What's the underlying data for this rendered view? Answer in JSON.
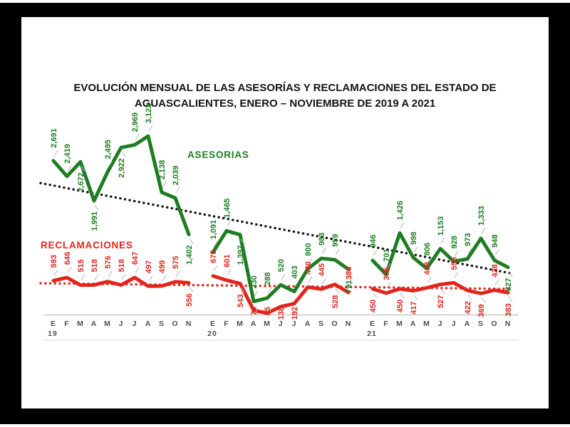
{
  "chart_data": {
    "type": "line",
    "title": "EVOLUCIÓN MENSUAL DE LAS ASESORÍAS Y RECLAMACIONES DEL ESTADO DE AGUASCALIENTES, ENERO – NOVIEMBRE DE 2019 A 2021",
    "legend": {
      "asesorias": "ASESORIAS",
      "reclamaciones": "RECLAMACIONES"
    },
    "month_labels": [
      "E",
      "F",
      "M",
      "A",
      "M",
      "J",
      "J",
      "A",
      "S",
      "O",
      "N"
    ],
    "year_labels": [
      "19",
      "20",
      "21"
    ],
    "ylim": [
      0,
      3200
    ],
    "grid": "off",
    "legend_position": "inside-plot",
    "series": [
      {
        "name": "ASESORIAS",
        "color": "#1e7d23",
        "values": [
          [
            2691,
            2419,
            2672,
            1991,
            2495,
            2922,
            2969,
            3122,
            2138,
            2039,
            1402
          ],
          [
            1091,
            1465,
            1397,
            230,
            288,
            520,
            403,
            800,
            983,
            959,
            791
          ],
          [
            946,
            701,
            1426,
            998,
            806,
            1153,
            928,
            973,
            1333,
            948,
            827
          ]
        ],
        "label_sides": [
          [
            "a",
            "a",
            "b",
            "b",
            "a",
            "b",
            "a",
            "a",
            "a",
            "a",
            "b"
          ],
          [
            "a",
            "a",
            "b",
            "a",
            "a",
            "a",
            "a",
            "a",
            "a",
            "a",
            "b"
          ],
          [
            "a",
            "a",
            "a",
            "a",
            "a",
            "a",
            "a",
            "a",
            "a",
            "a",
            "b"
          ]
        ]
      },
      {
        "name": "RECLAMACIONES",
        "color": "#e2251c",
        "values": [
          [
            593,
            646,
            515,
            518,
            576,
            518,
            647,
            497,
            499,
            575,
            556
          ],
          [
            675,
            601,
            543,
            74,
            25,
            138,
            192,
            480,
            445,
            528,
            386
          ],
          [
            450,
            375,
            450,
            417,
            468,
            527,
            555,
            422,
            369,
            428,
            383
          ]
        ],
        "label_sides": [
          [
            "a",
            "a",
            "a",
            "a",
            "a",
            "a",
            "a",
            "a",
            "a",
            "a",
            "b"
          ],
          [
            "a",
            "a",
            "b",
            "b",
            "b",
            "b",
            "b",
            "a",
            "a",
            "b",
            "a"
          ],
          [
            "b",
            "a",
            "b",
            "b",
            "a",
            "b",
            "a",
            "b",
            "b",
            "a",
            "b"
          ]
        ]
      }
    ],
    "trendlines": [
      {
        "for": "ASESORIAS",
        "color": "#111111",
        "start_value": 2300,
        "end_value": 720
      },
      {
        "for": "RECLAMACIONES",
        "color": "#e2251c",
        "start_value": 548,
        "end_value": 448
      }
    ]
  }
}
